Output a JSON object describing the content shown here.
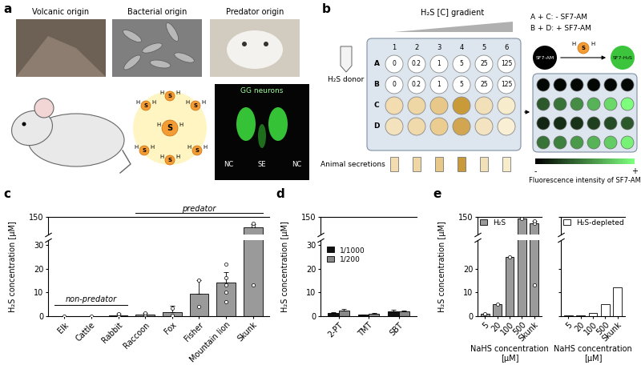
{
  "panel_a": {
    "label": "a",
    "photos": [
      "Volcanic origin",
      "Bacterial origin",
      "Predator origin"
    ],
    "molecule": {
      "center": "S",
      "atom": "H"
    },
    "inset": {
      "title": "GG neurons",
      "regions": [
        "NC",
        "SE",
        "NC"
      ]
    }
  },
  "panel_b": {
    "label": "b",
    "gradient": "H₂S [C] gradient",
    "donor": "H₂S donor",
    "secretions": "Animal secretions",
    "conditions": [
      "A + C: - SF7-AM",
      "B + D: + SF7-AM"
    ],
    "reaction": {
      "reactant": "SF7-AM",
      "product": "SF7-H₂S",
      "reagent": "S",
      "atom": "H"
    },
    "plate": {
      "rows": [
        "A",
        "B",
        "C",
        "D"
      ],
      "columns": [
        "1",
        "2",
        "3",
        "4",
        "5",
        "6"
      ],
      "concentrations": [
        "0",
        "0.2",
        "1",
        "5",
        "25",
        "125"
      ]
    },
    "scale": {
      "title": "Fluorescence intensity of SF7-AM",
      "low": "-",
      "high": "+"
    }
  },
  "chart_data": [
    {
      "label": "c",
      "type": "bar",
      "y_label": "H₂S concentration [μM]",
      "categories": [
        "Elk",
        "Cattle",
        "Rabbit",
        "Raccoon",
        "Fox",
        "Fisher",
        "Mountain lion",
        "Skunk"
      ],
      "values": [
        0.1,
        0.1,
        0.5,
        0.8,
        1.8,
        9.5,
        14,
        138
      ],
      "errors": [
        0,
        0,
        0.5,
        0.6,
        2.5,
        5.5,
        4.5,
        4
      ],
      "points": [
        [
          0.1
        ],
        [
          0.1
        ],
        [
          0.1,
          1.0
        ],
        [
          0.3,
          0.6,
          1.5
        ],
        [
          0.5,
          3.5
        ],
        [
          4,
          15
        ],
        [
          6,
          10,
          13,
          16,
          22
        ],
        [
          13,
          140,
          143
        ]
      ],
      "color": "#9a9a9a",
      "y_segments": [
        {
          "ylim": [
            0,
            32
          ],
          "yticks": [
            0,
            10,
            20,
            30
          ]
        },
        {
          "ylim": [
            130,
            150
          ],
          "yticks": [
            150
          ]
        }
      ],
      "groups": [
        {
          "label": "non-predator",
          "from": "Elk",
          "to": "Rabbit"
        },
        {
          "label": "predator",
          "from": "Raccoon",
          "to": "Skunk"
        }
      ]
    },
    {
      "label": "d",
      "type": "bar",
      "y_label": "H₂S concentration [μM]",
      "categories": [
        "2-PT",
        "TMT",
        "SBT"
      ],
      "series": [
        {
          "name": "1/1000",
          "color": "#111111",
          "values": [
            1.5,
            0.6,
            2.0
          ],
          "errors": [
            0.3,
            0.2,
            0.8
          ]
        },
        {
          "name": "1/200",
          "color": "#888888",
          "values": [
            2.5,
            1.0,
            2.0
          ],
          "errors": [
            0.4,
            0.3,
            0.3
          ]
        }
      ],
      "legend": "upper left",
      "y_segments": [
        {
          "ylim": [
            0,
            32
          ],
          "yticks": [
            0,
            10,
            20,
            30
          ]
        },
        {
          "ylim": [
            130,
            150
          ],
          "yticks": [
            150
          ]
        }
      ]
    },
    {
      "label": "e",
      "type": "bar",
      "y_label": "H₂S concentration [μM]",
      "x_label": "NaHS concentration\n[μM]",
      "categories": [
        "5",
        "20",
        "100",
        "500",
        "Skunk"
      ],
      "series": [
        {
          "name": "H₂S",
          "color": "#9a9a9a",
          "values": [
            1,
            5,
            25,
            148,
            143
          ],
          "errors": [
            0,
            0,
            0,
            0,
            3
          ],
          "points": [
            [
              1
            ],
            [
              5
            ],
            [
              25
            ],
            [
              148
            ],
            [
              13,
              143,
              146
            ]
          ]
        }
      ],
      "legend": "upper left",
      "y_segments": [
        {
          "ylim": [
            0,
            32
          ],
          "yticks": [
            0,
            10,
            20
          ]
        },
        {
          "ylim": [
            130,
            150
          ],
          "yticks": [
            150
          ]
        }
      ]
    },
    {
      "type": "bar",
      "x_label": "NaHS concentration\n[μM]",
      "categories": [
        "5",
        "20",
        "100",
        "500",
        "Skunk"
      ],
      "series": [
        {
          "name": "H₂S-depleted",
          "color": "#ffffff",
          "values": [
            0.2,
            0.5,
            1.5,
            5,
            12
          ]
        }
      ],
      "legend": "upper left",
      "tick_labels": "x",
      "y_segments": [
        {
          "ylim": [
            0,
            32
          ],
          "yticks": [
            0,
            10,
            20
          ]
        },
        {
          "ylim": [
            130,
            150
          ],
          "yticks": [
            150
          ]
        }
      ]
    }
  ]
}
